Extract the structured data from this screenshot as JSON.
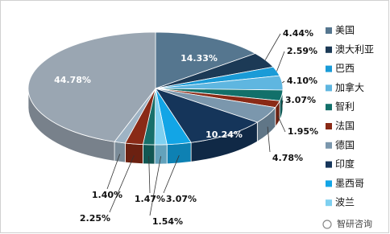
{
  "chart_data": {
    "type": "pie",
    "categories": [
      "美国",
      "澳大利亚",
      "巴西",
      "加拿大",
      "智利",
      "法国",
      "德国",
      "印度",
      "墨西哥",
      "波兰",
      null,
      null,
      null,
      null
    ],
    "values": [
      14.33,
      4.44,
      2.59,
      4.1,
      3.07,
      1.95,
      4.78,
      10.24,
      3.07,
      1.54,
      1.47,
      2.25,
      1.4,
      44.78
    ],
    "value_labels": [
      "14.33%",
      "4.44%",
      "2.59%",
      "4.10%",
      "3.07%",
      "1.95%",
      "4.78%",
      "10.24%",
      "3.07%",
      "1.54%",
      "1.47%",
      "2.25%",
      "1.40%",
      "44.78%"
    ],
    "colors": [
      "#55768f",
      "#1c3a56",
      "#1a9bd7",
      "#5fb6e0",
      "#12706a",
      "#8a2a16",
      "#7b97ad",
      "#15355a",
      "#12a5e6",
      "#7fd0f0",
      "#17706b",
      "#8a2a16",
      "#9eb3c4",
      "#9aa6b2"
    ],
    "legend": "right"
  },
  "watermark": "智研咨询"
}
